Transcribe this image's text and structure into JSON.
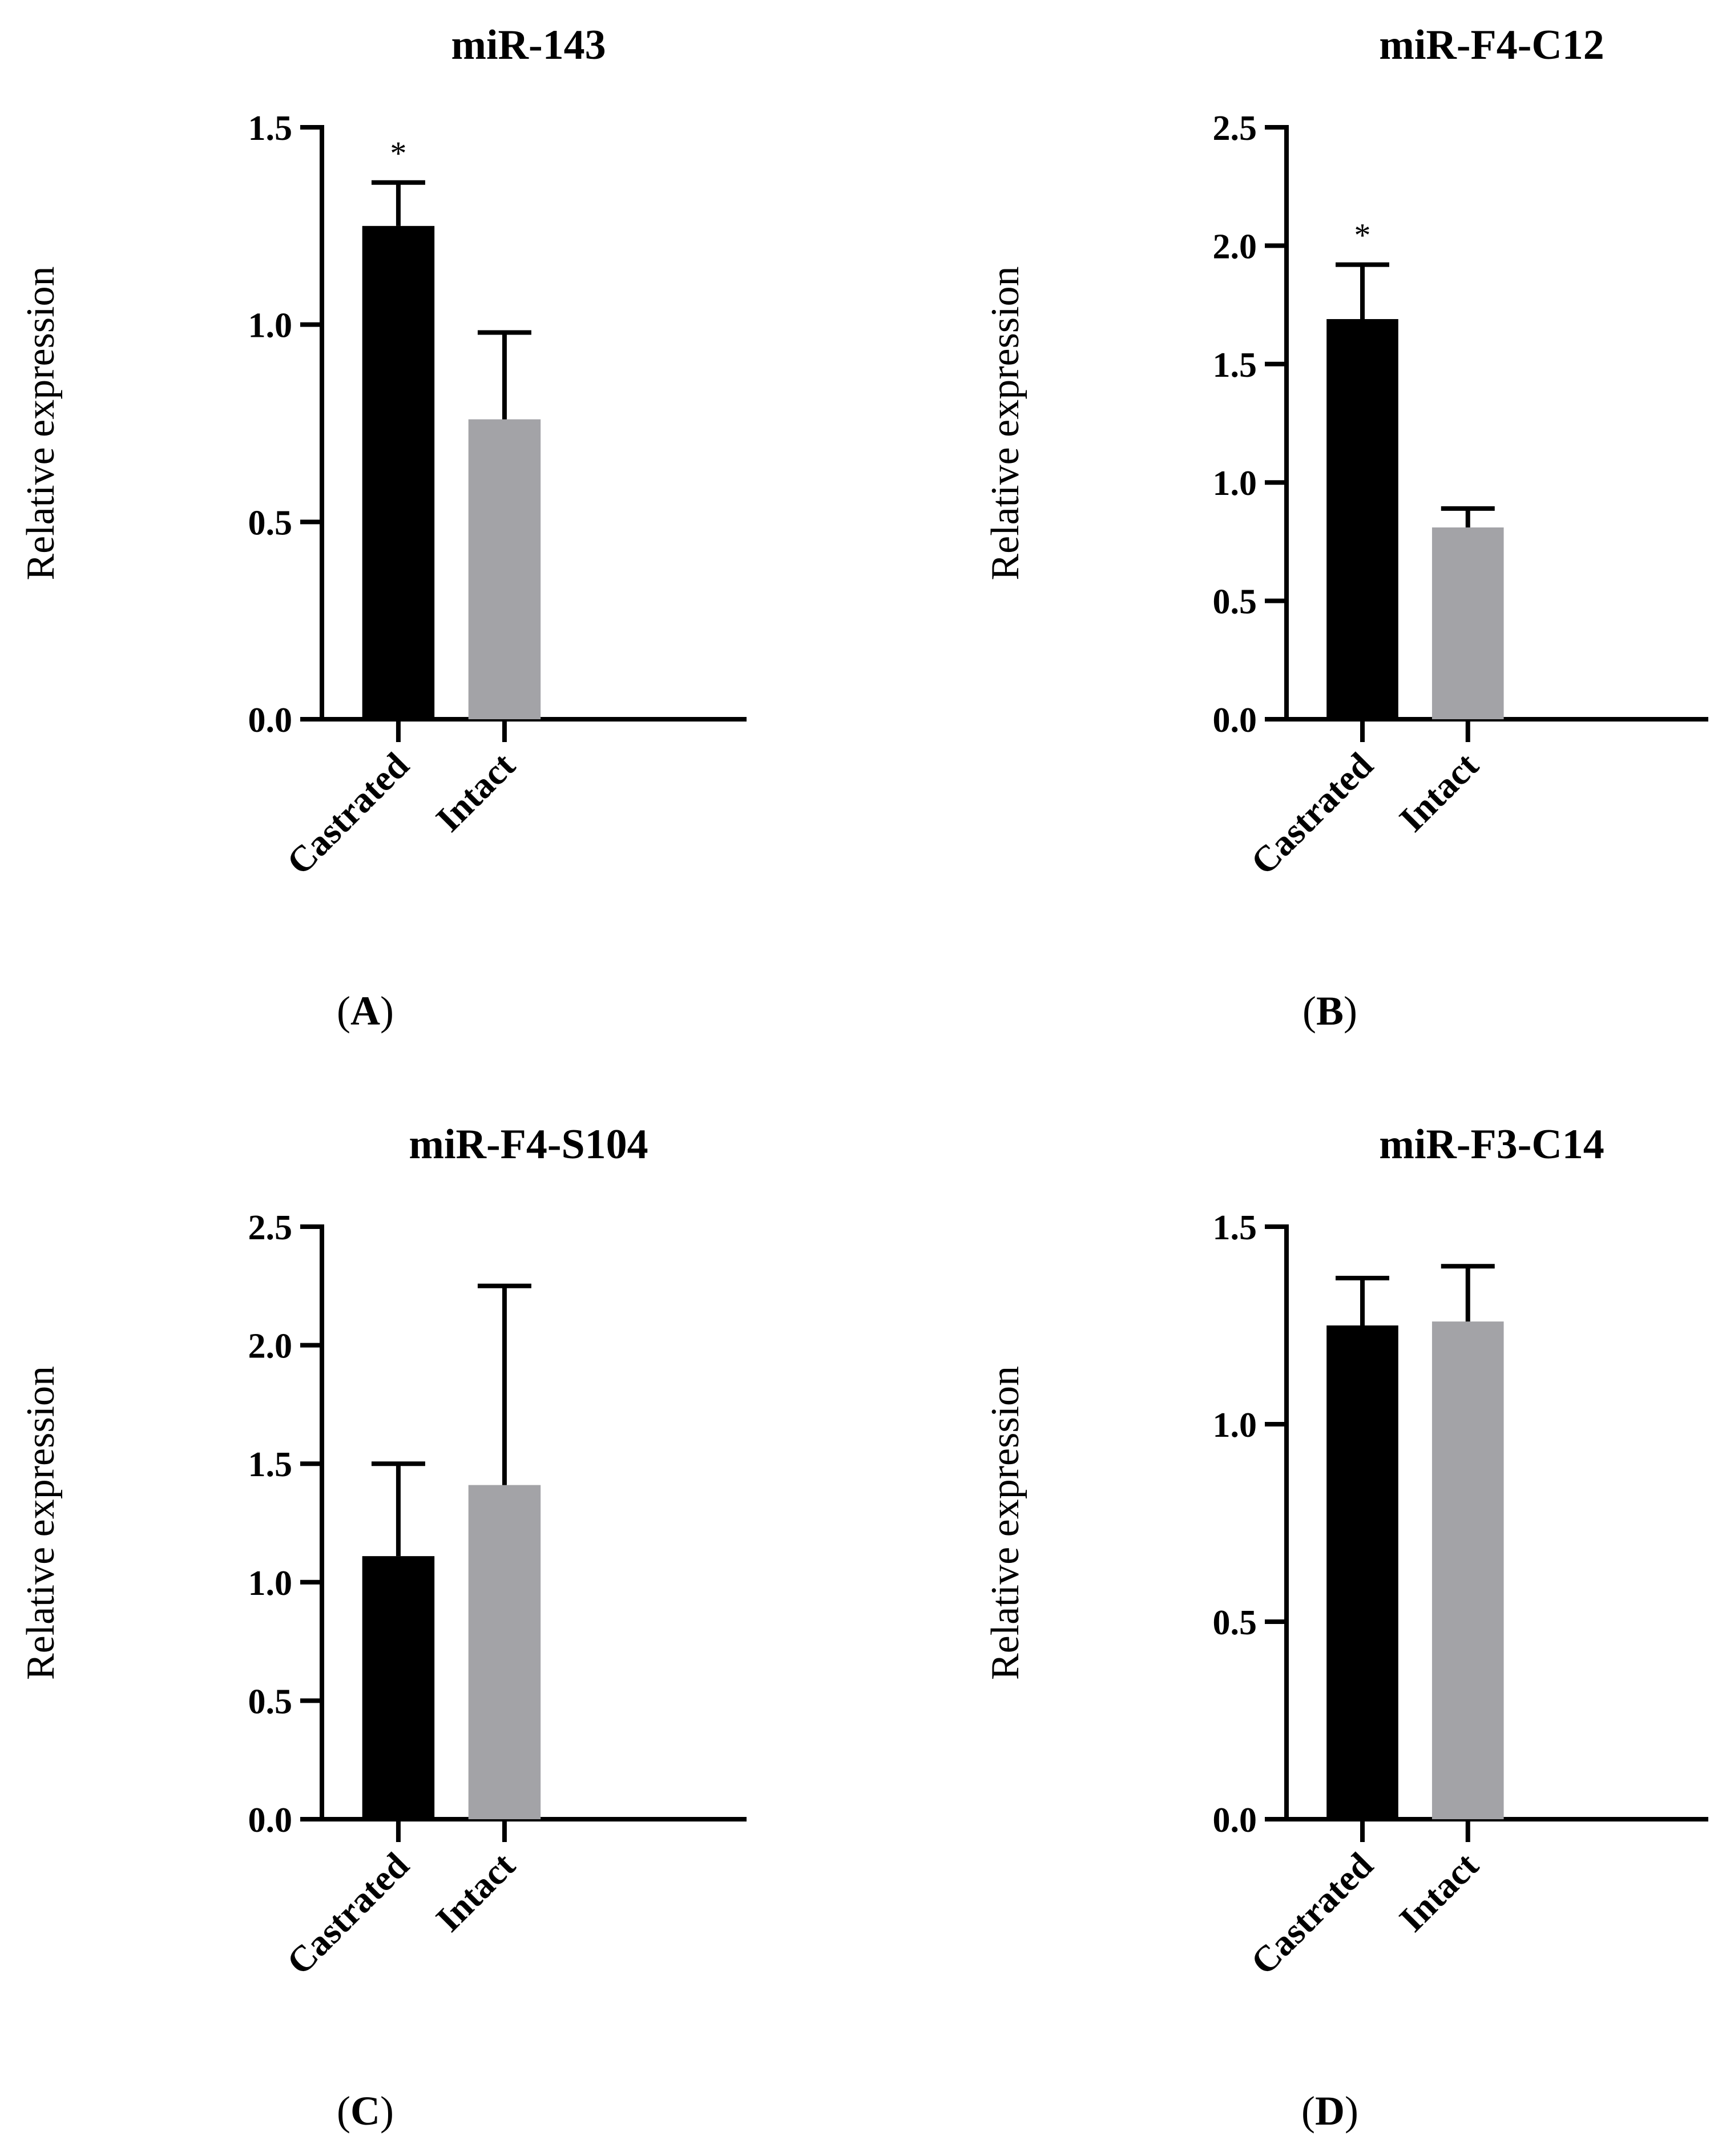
{
  "colors": {
    "castrated": "#000000",
    "intact": "#a3a3a7",
    "axis": "#000000"
  },
  "chart_data": [
    {
      "type": "bar",
      "panel": "(A)",
      "panel_letter": "A",
      "title": "miR-143",
      "ylabel": "Relative expression",
      "xlabel": "",
      "ylim": [
        0,
        1.5
      ],
      "yticks": [
        "0.0",
        "0.5",
        "1.0",
        "1.5"
      ],
      "categories": [
        "Castrated",
        "Intact"
      ],
      "values": [
        1.25,
        0.76
      ],
      "errors": [
        0.11,
        0.22
      ],
      "significance": [
        "*",
        ""
      ]
    },
    {
      "type": "bar",
      "panel": "(B)",
      "panel_letter": "B",
      "title": "miR-F4-C12",
      "ylabel": "Relative expression",
      "xlabel": "",
      "ylim": [
        0,
        2.5
      ],
      "yticks": [
        "0.0",
        "0.5",
        "1.0",
        "1.5",
        "2.0",
        "2.5"
      ],
      "categories": [
        "Castrated",
        "Intact"
      ],
      "values": [
        1.69,
        0.81
      ],
      "errors": [
        0.23,
        0.08
      ],
      "significance": [
        "*",
        ""
      ]
    },
    {
      "type": "bar",
      "panel": "(C)",
      "panel_letter": "C",
      "title": "miR-F4-S104",
      "ylabel": "Relative expression",
      "xlabel": "",
      "ylim": [
        0,
        2.5
      ],
      "yticks": [
        "0.0",
        "0.5",
        "1.0",
        "1.5",
        "2.0",
        "2.5"
      ],
      "categories": [
        "Castrated",
        "Intact"
      ],
      "values": [
        1.11,
        1.41
      ],
      "errors": [
        0.39,
        0.84
      ],
      "significance": [
        "",
        ""
      ]
    },
    {
      "type": "bar",
      "panel": "(D)",
      "panel_letter": "D",
      "title": "miR-F3-C14",
      "ylabel": "Relative expression",
      "xlabel": "",
      "ylim": [
        0,
        1.5
      ],
      "yticks": [
        "0.0",
        "0.5",
        "1.0",
        "1.5"
      ],
      "categories": [
        "Castrated",
        "Intact"
      ],
      "values": [
        1.25,
        1.26
      ],
      "errors": [
        0.12,
        0.14
      ],
      "significance": [
        "",
        ""
      ]
    }
  ]
}
